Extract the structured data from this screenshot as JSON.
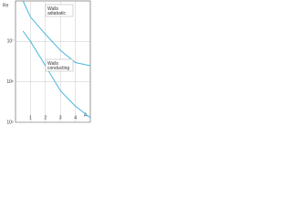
{
  "chart_data": {
    "type": "line",
    "y_label": "Re",
    "x_label": "A",
    "log_y": true,
    "x": [
      0.5,
      1,
      2,
      3,
      4,
      5
    ],
    "series": [
      {
        "name": "Walls adiabatic",
        "color": "#49b6e0",
        "values": [
          100000000,
          40000000,
          15000000,
          6000000,
          3000000,
          2500000
        ]
      },
      {
        "name": "Walls conducting",
        "color": "#49b6e0",
        "values": [
          18000000,
          10000000,
          2500000,
          600000,
          250000,
          130000
        ]
      }
    ],
    "xlim": [
      0,
      5
    ],
    "xticks": [
      1,
      2,
      3,
      4
    ],
    "ylim": [
      100000,
      100000000
    ],
    "yticks": [
      {
        "value": 100000,
        "label": "10⁵"
      },
      {
        "value": 1000000,
        "label": "10⁶"
      },
      {
        "value": 10000000,
        "label": "10⁷"
      }
    ],
    "grid": true
  }
}
